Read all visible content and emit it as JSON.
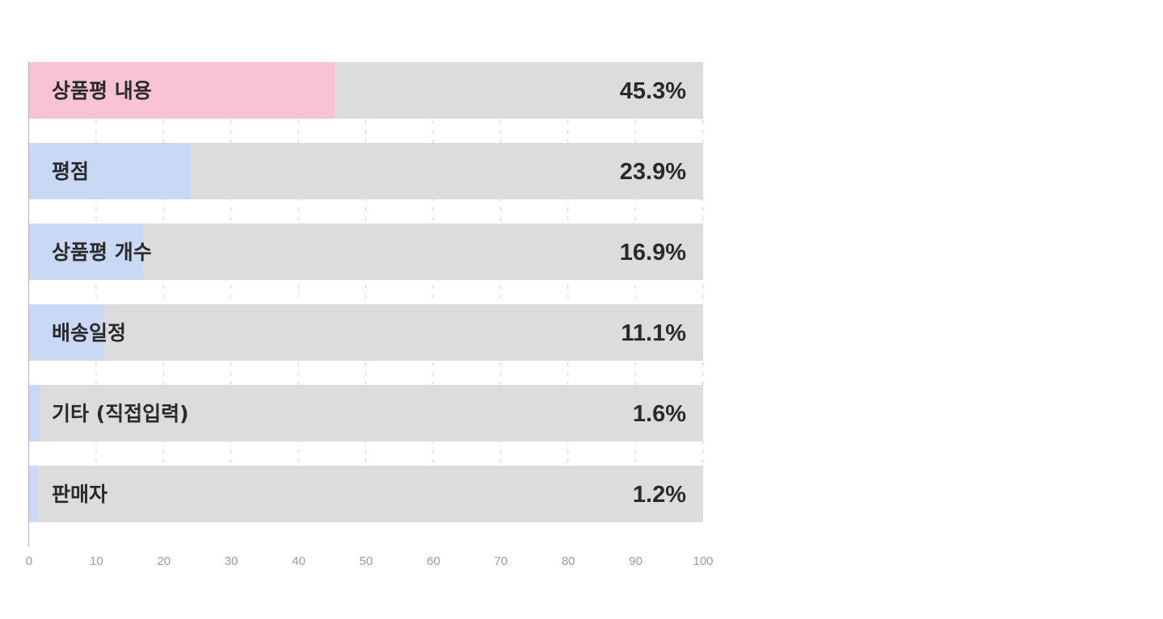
{
  "chart_data": {
    "type": "bar",
    "orientation": "horizontal",
    "categories": [
      "상품평 내용",
      "평점",
      "상품평 개수",
      "배송일정",
      "기타 (직접입력)",
      "판매자"
    ],
    "values": [
      45.3,
      23.9,
      16.9,
      11.1,
      1.6,
      1.2
    ],
    "value_labels": [
      "45.3%",
      "23.9%",
      "16.9%",
      "11.1%",
      "1.6%",
      "1.2%"
    ],
    "xlim": [
      0,
      100
    ],
    "x_ticks": [
      0,
      10,
      20,
      30,
      40,
      50,
      60,
      70,
      80,
      90,
      100
    ],
    "x_tick_labels": [
      "0",
      "10",
      "20",
      "30",
      "40",
      "50",
      "60",
      "70",
      "80",
      "90",
      "100"
    ],
    "grid": "vertical-dashed",
    "title": "",
    "xlabel": "",
    "ylabel": "",
    "colors": {
      "highlight": "#f7c3d5",
      "bar": "#c8d8f5",
      "track": "#dcdcdc",
      "grid": "#cfcfcf",
      "axis": "#b5b5b5",
      "text": "#2a2a2a",
      "tick": "#9a9a9a"
    }
  }
}
